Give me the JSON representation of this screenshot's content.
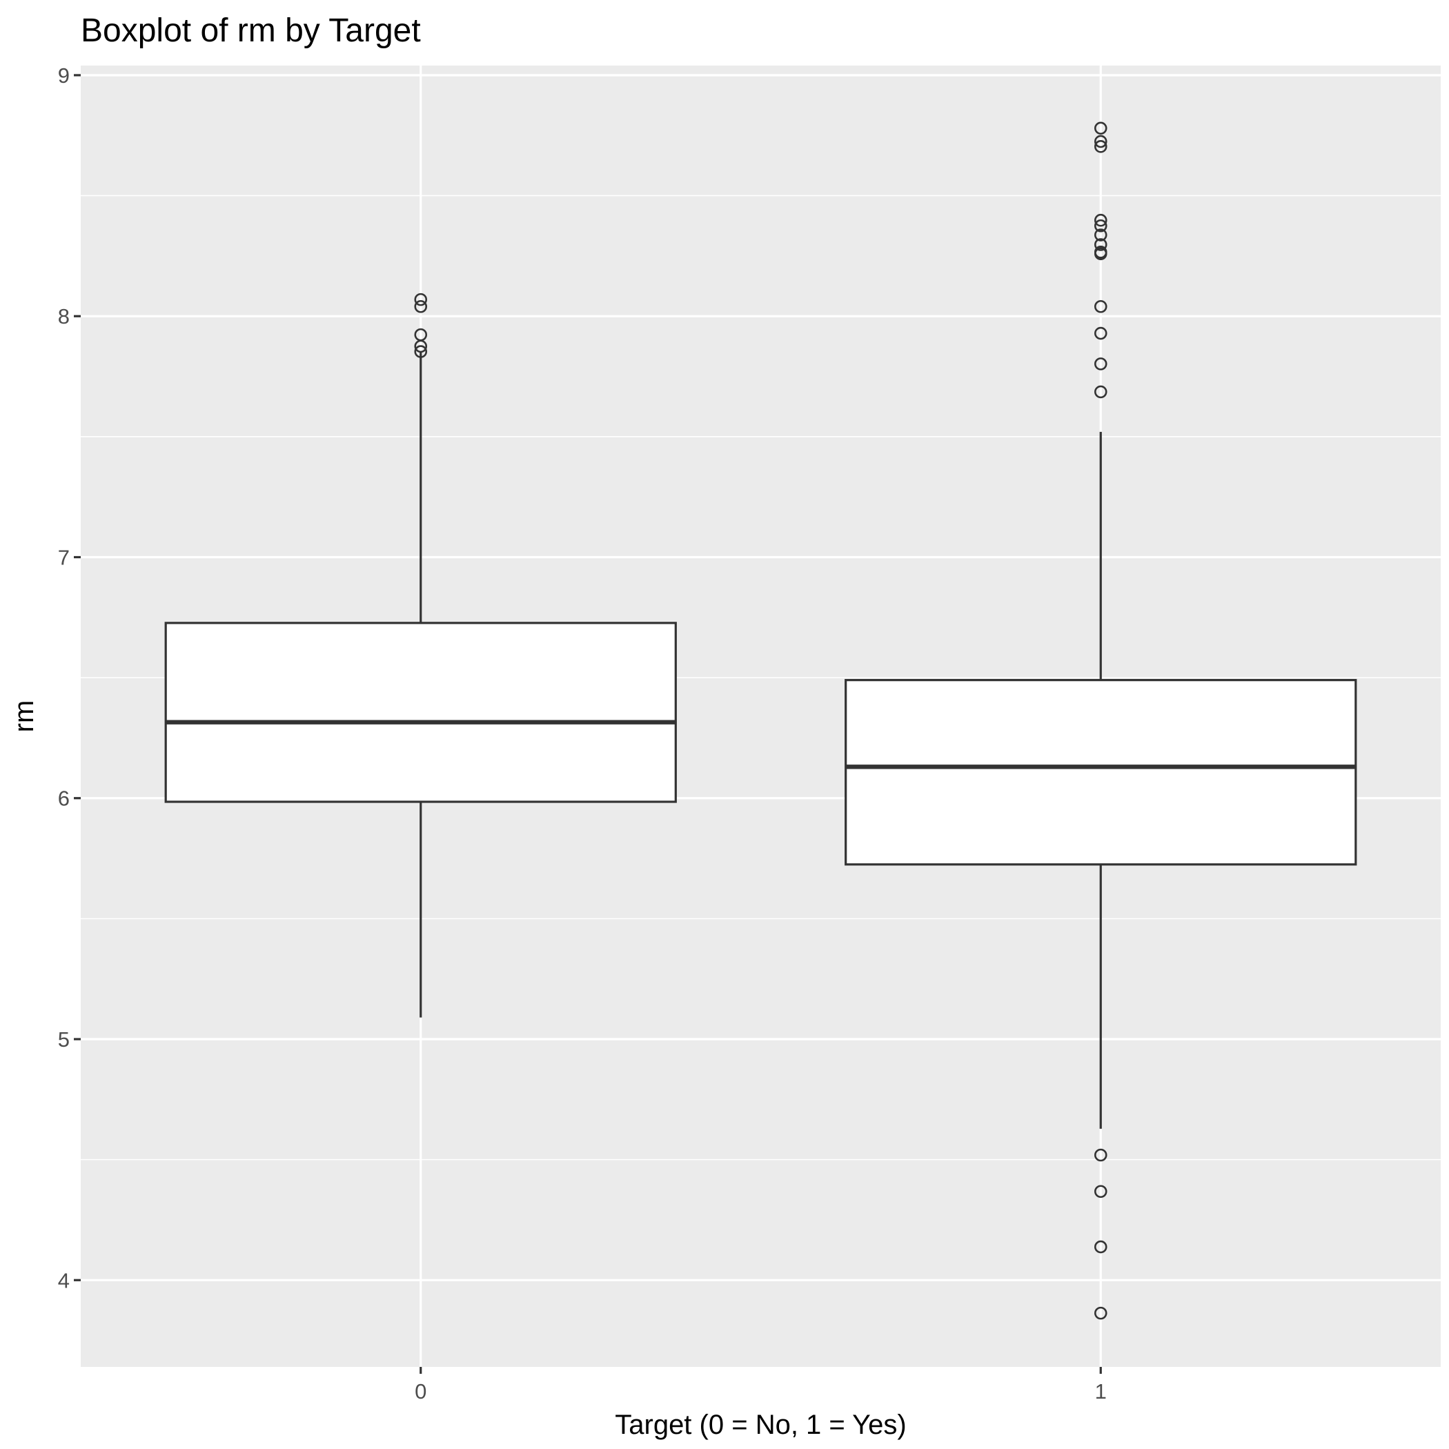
{
  "chart_data": {
    "type": "boxplot",
    "title": "Boxplot of rm by Target",
    "xlabel": "Target (0 = No, 1 = Yes)",
    "ylabel": "rm",
    "categories": [
      "0",
      "1"
    ],
    "ylim": [
      3.64,
      9.04
    ],
    "yticks": [
      4,
      5,
      6,
      7,
      8,
      9
    ],
    "grid": true,
    "legend": "none",
    "background_color": "#ebebeb",
    "grid_color": "#ffffff",
    "box_fill": "#ffffff",
    "line_color": "#333333",
    "boxes": [
      {
        "category": "0",
        "whisker_low": 5.09,
        "q1": 5.985,
        "median": 6.315,
        "q3": 6.727,
        "whisker_high": 7.853,
        "outliers": [
          8.069,
          8.04,
          7.923,
          7.875,
          7.853
        ]
      },
      {
        "category": "1",
        "whisker_low": 4.628,
        "q1": 5.725,
        "median": 6.13,
        "q3": 6.49,
        "whisker_high": 7.52,
        "outliers": [
          8.78,
          8.725,
          8.704,
          8.398,
          8.375,
          8.337,
          8.297,
          8.266,
          8.259,
          8.04,
          7.929,
          7.802,
          7.686,
          4.519,
          4.368,
          4.138,
          3.863
        ]
      }
    ]
  }
}
